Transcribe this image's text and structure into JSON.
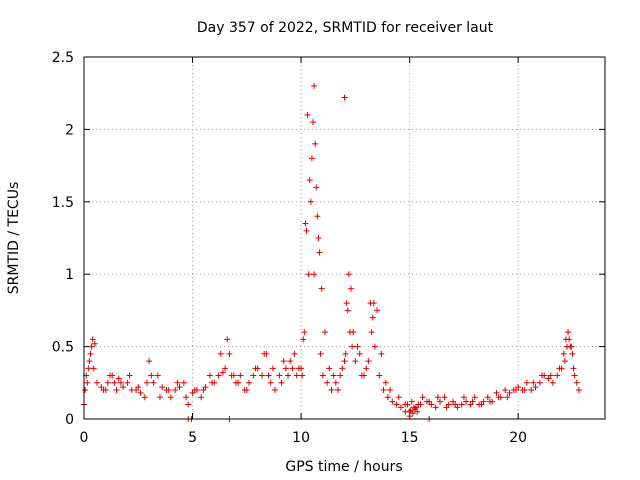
{
  "chart_data": {
    "type": "scatter",
    "title": "Day 357 of 2022, SRMTID for receiver laut",
    "xlabel": "GPS time / hours",
    "ylabel": "SRMTID / TECUs",
    "xlim": [
      0,
      24
    ],
    "ylim": [
      0,
      2.5
    ],
    "x_ticks": [
      0,
      5,
      10,
      15,
      20
    ],
    "x_tick_labels": [
      "0",
      "5",
      "10",
      "15",
      "20"
    ],
    "y_ticks": [
      0,
      0.5,
      1,
      1.5,
      2,
      2.5
    ],
    "y_tick_labels": [
      "0",
      "0.5",
      "1",
      "1.5",
      "2",
      "2.5"
    ],
    "grid": true,
    "marker": "+",
    "color": "#e00000",
    "series": [
      {
        "name": "SRMTID",
        "x": [
          0.0,
          0.1,
          0.2,
          0.3,
          0.4,
          0.5,
          0.6,
          0.8,
          1.0,
          1.2,
          1.4,
          1.6,
          1.8,
          2.0,
          2.2,
          2.4,
          2.6,
          2.8,
          3.0,
          3.2,
          3.4,
          3.6,
          3.8,
          4.0,
          4.2,
          4.4,
          4.6,
          4.8,
          5.0,
          5.2,
          5.4,
          5.6,
          5.8,
          6.0,
          6.2,
          6.4,
          6.6,
          6.8,
          7.0,
          7.2,
          7.4,
          7.6,
          7.8,
          8.0,
          8.2,
          8.4,
          8.6,
          8.8,
          9.0,
          9.2,
          9.4,
          9.6,
          9.8,
          10.0,
          10.1,
          10.2,
          10.3,
          10.4,
          10.5,
          10.6,
          10.7,
          10.8,
          10.9,
          11.0,
          11.2,
          11.4,
          11.6,
          11.8,
          12.0,
          12.1,
          12.2,
          12.3,
          12.4,
          12.6,
          12.8,
          13.0,
          13.2,
          13.3,
          13.4,
          13.6,
          13.8,
          14.0,
          14.2,
          14.4,
          14.6,
          14.8,
          15.0,
          15.2,
          15.4,
          15.6,
          15.8,
          16.0,
          16.2,
          16.4,
          16.6,
          16.8,
          17.0,
          17.2,
          17.4,
          17.6,
          17.8,
          18.0,
          18.2,
          18.4,
          18.6,
          18.8,
          19.0,
          19.2,
          19.4,
          19.6,
          19.8,
          20.0,
          20.2,
          20.4,
          20.6,
          20.8,
          21.0,
          21.2,
          21.4,
          21.6,
          21.8,
          22.0,
          22.1,
          22.2,
          22.3,
          22.4,
          22.5,
          22.6,
          22.8,
          0.05,
          0.15,
          0.25,
          0.35,
          0.45,
          0.9,
          1.1,
          1.3,
          1.5,
          1.7,
          2.1,
          2.5,
          2.9,
          3.1,
          3.5,
          3.9,
          4.3,
          4.7,
          5.1,
          5.5,
          5.9,
          6.3,
          6.5,
          6.7,
          6.9,
          7.1,
          7.5,
          7.9,
          8.3,
          8.5,
          8.7,
          9.1,
          9.3,
          9.5,
          9.7,
          9.9,
          10.05,
          10.15,
          10.25,
          10.35,
          10.45,
          10.55,
          10.65,
          10.75,
          10.85,
          10.95,
          11.1,
          11.3,
          11.5,
          11.7,
          11.9,
          12.05,
          12.15,
          12.25,
          12.35,
          12.5,
          12.7,
          12.9,
          13.1,
          13.25,
          13.35,
          13.5,
          13.7,
          13.9,
          14.1,
          14.5,
          14.9,
          15.1,
          15.3,
          15.5,
          15.9,
          16.3,
          16.7,
          17.1,
          17.5,
          17.9,
          18.3,
          18.7,
          19.1,
          19.5,
          19.9,
          20.3,
          20.7,
          21.1,
          21.5,
          21.9,
          22.15,
          22.25,
          22.35,
          22.45,
          22.55,
          22.7,
          12.0,
          10.6,
          6.7,
          15.9,
          4.8,
          4.95,
          14.8,
          15.0,
          15.05,
          15.15,
          15.25,
          15.35
        ],
        "y": [
          0.1,
          0.3,
          0.35,
          0.45,
          0.55,
          0.52,
          0.25,
          0.22,
          0.2,
          0.3,
          0.25,
          0.28,
          0.22,
          0.25,
          0.2,
          0.2,
          0.18,
          0.15,
          0.4,
          0.25,
          0.3,
          0.22,
          0.2,
          0.15,
          0.2,
          0.22,
          0.25,
          0.1,
          0.18,
          0.2,
          0.15,
          0.22,
          0.3,
          0.25,
          0.3,
          0.32,
          0.55,
          0.3,
          0.25,
          0.3,
          0.2,
          0.25,
          0.3,
          0.35,
          0.3,
          0.45,
          0.25,
          0.2,
          0.3,
          0.4,
          0.3,
          0.35,
          0.3,
          0.35,
          0.55,
          1.35,
          2.1,
          1.65,
          1.8,
          1.0,
          1.6,
          1.25,
          0.45,
          0.3,
          0.25,
          0.2,
          0.25,
          0.3,
          0.4,
          0.8,
          1.0,
          0.9,
          0.6,
          0.5,
          0.3,
          0.35,
          0.8,
          0.7,
          0.5,
          0.3,
          0.2,
          0.15,
          0.12,
          0.1,
          0.08,
          0.1,
          0.05,
          0.08,
          0.1,
          0.15,
          0.12,
          0.1,
          0.08,
          0.12,
          0.15,
          0.1,
          0.12,
          0.08,
          0.1,
          0.12,
          0.1,
          0.15,
          0.1,
          0.12,
          0.15,
          0.12,
          0.18,
          0.15,
          0.2,
          0.18,
          0.2,
          0.22,
          0.2,
          0.25,
          0.2,
          0.22,
          0.25,
          0.3,
          0.28,
          0.25,
          0.3,
          0.35,
          0.45,
          0.55,
          0.6,
          0.5,
          0.45,
          0.3,
          0.2,
          0.2,
          0.25,
          0.4,
          0.5,
          0.35,
          0.2,
          0.25,
          0.3,
          0.2,
          0.25,
          0.3,
          0.22,
          0.25,
          0.3,
          0.15,
          0.2,
          0.25,
          0.15,
          0.2,
          0.2,
          0.25,
          0.45,
          0.35,
          0.45,
          0.3,
          0.25,
          0.2,
          0.35,
          0.45,
          0.3,
          0.35,
          0.25,
          0.35,
          0.4,
          0.45,
          0.35,
          0.3,
          0.6,
          1.3,
          1.0,
          1.5,
          2.05,
          1.9,
          1.4,
          1.15,
          0.9,
          0.6,
          0.35,
          0.3,
          0.2,
          0.35,
          0.45,
          0.75,
          0.6,
          0.5,
          0.4,
          0.45,
          0.3,
          0.4,
          0.6,
          0.8,
          0.75,
          0.45,
          0.25,
          0.2,
          0.15,
          0.1,
          0.12,
          0.08,
          0.1,
          0.12,
          0.15,
          0.08,
          0.1,
          0.15,
          0.12,
          0.1,
          0.12,
          0.15,
          0.15,
          0.2,
          0.2,
          0.25,
          0.3,
          0.3,
          0.35,
          0.4,
          0.5,
          0.55,
          0.5,
          0.35,
          0.25,
          2.22,
          2.3,
          0.0,
          0.0,
          0.0,
          0.0,
          0.05,
          0.02,
          0.06,
          0.04,
          0.07,
          0.05
        ]
      }
    ]
  }
}
